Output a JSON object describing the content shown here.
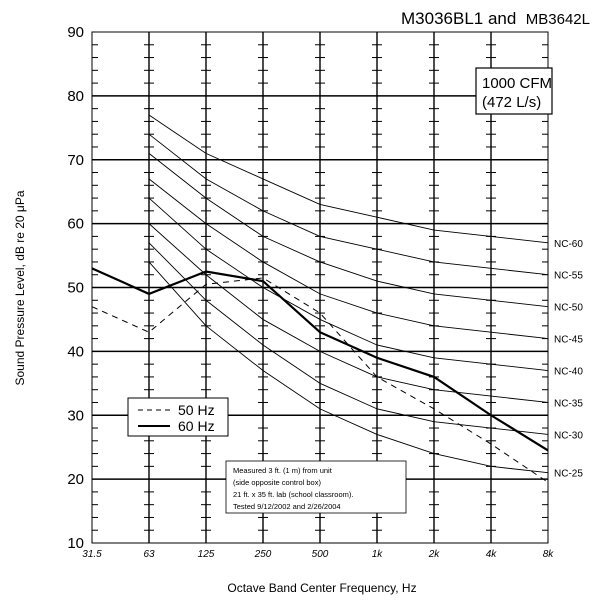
{
  "chart_data": {
    "type": "line",
    "title_main": "M3036BL1 and",
    "title_sub": "MB3642L",
    "xlabel": "Octave Band Center Frequency, Hz",
    "ylabel": "Sound Pressure Level, dB re 20 μPa",
    "x_scale": "log2",
    "categories": [
      "31.5",
      "63",
      "125",
      "250",
      "500",
      "1k",
      "2k",
      "4k",
      "8k"
    ],
    "ylim": [
      10,
      90
    ],
    "yticks": [
      10,
      20,
      30,
      40,
      50,
      60,
      70,
      80,
      90
    ],
    "grid": true,
    "series": [
      {
        "name": "50 Hz",
        "style": "dashed",
        "values": [
          47,
          43,
          50.5,
          51.5,
          46,
          36,
          31,
          25.5,
          19.5
        ]
      },
      {
        "name": "60 Hz",
        "style": "solid",
        "values": [
          53,
          49,
          52.5,
          51,
          43,
          39,
          36,
          30,
          24.5
        ]
      }
    ],
    "nc_curves": [
      {
        "name": "NC-60",
        "values": [
          null,
          77,
          71,
          67,
          63,
          61,
          59,
          58,
          57
        ]
      },
      {
        "name": "NC-55",
        "values": [
          null,
          74,
          67,
          62,
          58,
          56,
          54,
          53,
          52
        ]
      },
      {
        "name": "NC-50",
        "values": [
          null,
          71,
          64,
          58,
          54,
          51,
          49,
          48,
          47
        ]
      },
      {
        "name": "NC-45",
        "values": [
          null,
          67,
          60,
          54,
          49,
          46,
          44,
          43,
          42
        ]
      },
      {
        "name": "NC-40",
        "values": [
          null,
          64,
          56,
          50,
          45,
          41,
          39,
          38,
          37
        ]
      },
      {
        "name": "NC-35",
        "values": [
          null,
          60,
          52,
          45,
          40,
          36,
          34,
          33,
          32
        ]
      },
      {
        "name": "NC-30",
        "values": [
          null,
          57,
          48,
          41,
          35,
          31,
          29,
          28,
          27
        ]
      },
      {
        "name": "NC-25",
        "values": [
          null,
          54,
          44,
          37,
          31,
          27,
          24,
          22,
          21
        ]
      }
    ],
    "airflow_box": [
      "1000 CFM",
      "(472 L/s)"
    ],
    "legend_placement": "left-middle",
    "note_lines": [
      "Measured 3 ft. (1 m) from unit",
      "(side opposite control box)",
      "21 ft. x 35 ft. lab (school classroom).",
      "Tested 9/12/2002 and 2/26/2004"
    ]
  }
}
